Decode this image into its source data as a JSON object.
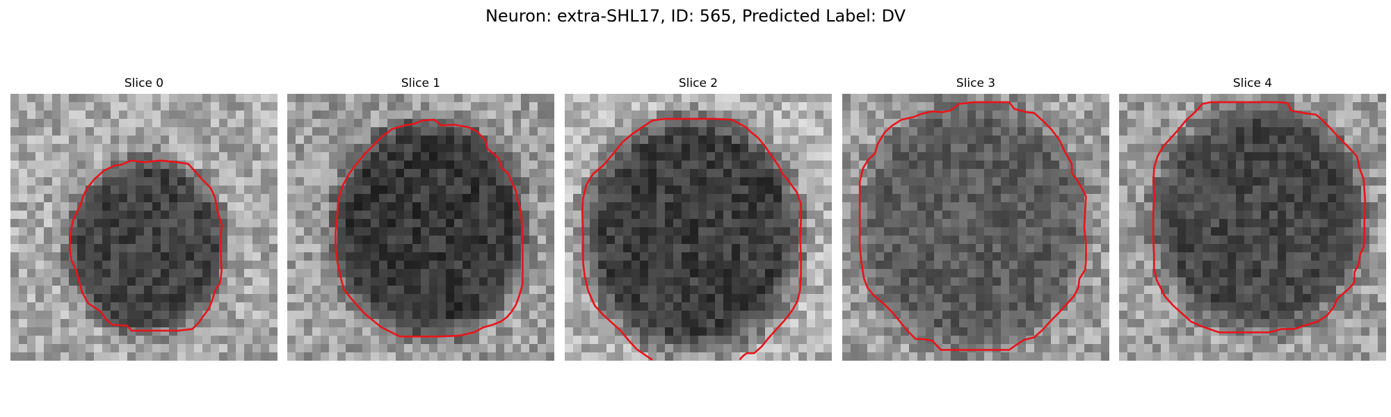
{
  "figure": {
    "title": "Neuron: extra-SHL17, ID: 565, Predicted Label: DV"
  },
  "colors": {
    "background": "#ffffff",
    "contour": "#e8141b",
    "colormap": "grayscale"
  },
  "slices": [
    {
      "title": "Slice 0"
    },
    {
      "title": "Slice 1"
    },
    {
      "title": "Slice 2"
    },
    {
      "title": "Slice 3"
    },
    {
      "title": "Slice 4"
    }
  ]
}
